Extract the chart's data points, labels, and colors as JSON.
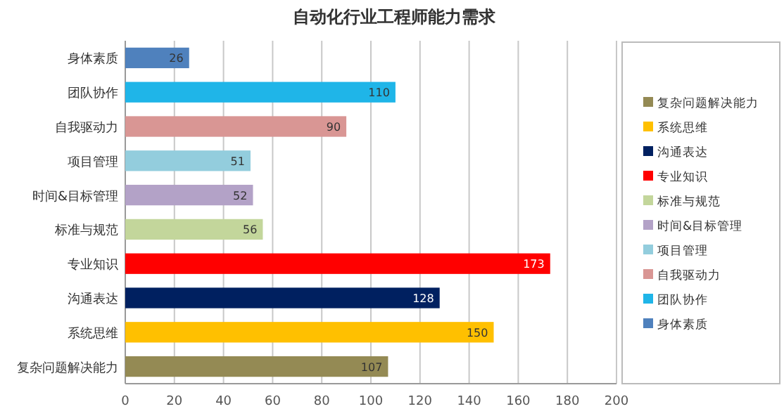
{
  "chart_data": {
    "type": "bar",
    "orientation": "horizontal",
    "stacked": true,
    "title": "自动化行业工程师能力需求",
    "categories": [
      "身体素质",
      "团队协作",
      "自我驱动力",
      "项目管理",
      "时间&目标管理",
      "标准与规范",
      "专业知识",
      "沟通表达",
      "系统思维",
      "复杂问题解决能力"
    ],
    "series": [
      {
        "name": "身体素质",
        "color": "#4f81bd",
        "values": [
          26,
          null,
          null,
          null,
          null,
          null,
          null,
          null,
          null,
          null
        ]
      },
      {
        "name": "团队协作",
        "color": "#1fb5e8",
        "values": [
          null,
          110,
          null,
          null,
          null,
          null,
          null,
          null,
          null,
          null
        ]
      },
      {
        "name": "自我驱动力",
        "color": "#d99694",
        "values": [
          null,
          null,
          90,
          null,
          null,
          null,
          null,
          null,
          null,
          null
        ]
      },
      {
        "name": "项目管理",
        "color": "#93cddd",
        "values": [
          null,
          null,
          null,
          51,
          null,
          null,
          null,
          null,
          null,
          null
        ]
      },
      {
        "name": "时间&目标管理",
        "color": "#b3a2c7",
        "values": [
          null,
          null,
          null,
          null,
          52,
          null,
          null,
          null,
          null,
          null
        ]
      },
      {
        "name": "标准与规范",
        "color": "#c3d69b",
        "values": [
          null,
          null,
          null,
          null,
          null,
          56,
          null,
          null,
          null,
          null
        ]
      },
      {
        "name": "专业知识",
        "color": "#ff0000",
        "values": [
          null,
          null,
          null,
          null,
          null,
          null,
          173,
          null,
          null,
          null
        ]
      },
      {
        "name": "沟通表达",
        "color": "#002060",
        "values": [
          null,
          null,
          null,
          null,
          null,
          null,
          null,
          128,
          null,
          null
        ]
      },
      {
        "name": "系统思维",
        "color": "#ffc000",
        "values": [
          null,
          null,
          null,
          null,
          null,
          null,
          null,
          null,
          150,
          null
        ]
      },
      {
        "name": "复杂问题解决能力",
        "color": "#948a54",
        "values": [
          null,
          null,
          null,
          null,
          null,
          null,
          null,
          null,
          null,
          107
        ]
      }
    ],
    "xlim": [
      0,
      200
    ],
    "xticks": [
      0,
      20,
      40,
      60,
      80,
      100,
      120,
      140,
      160,
      180,
      200
    ],
    "grid": "x",
    "legend": "right",
    "data_labels": true
  }
}
